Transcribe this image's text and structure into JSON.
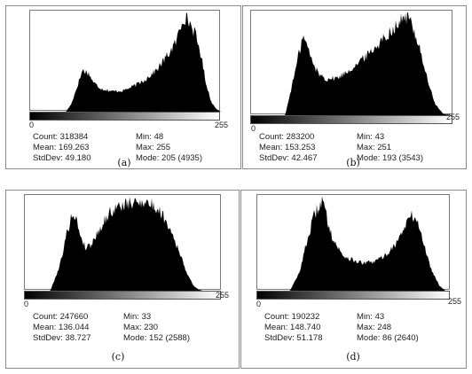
{
  "panels": [
    {
      "caption": "(a)",
      "axis": {
        "min_label": "0",
        "max_label": "255"
      },
      "stats": {
        "count": "Count: 318384",
        "mean": "Mean: 169.263",
        "stddev": "StdDev: 49.180",
        "min": "Min: 48",
        "max": "Max: 255",
        "mode": "Mode: 205 (4935)"
      }
    },
    {
      "caption": "(b)",
      "axis": {
        "min_label": "0",
        "max_label": "255"
      },
      "stats": {
        "count": "Count: 283200",
        "mean": "Mean: 153.253",
        "stddev": "StdDev: 42.467",
        "min": "Min: 43",
        "max": "Max: 251",
        "mode": "Mode: 193 (3543)"
      }
    },
    {
      "caption": "(c)",
      "axis": {
        "min_label": "0",
        "max_label": "255"
      },
      "stats": {
        "count": "Count: 247660",
        "mean": "Mean: 136.044",
        "stddev": "StdDev: 38.727",
        "min": "Min: 33",
        "max": "Max: 230",
        "mode": "Mode: 152 (2588)"
      }
    },
    {
      "caption": "(d)",
      "axis": {
        "min_label": "0",
        "max_label": "255"
      },
      "stats": {
        "count": "Count: 190232",
        "mean": "Mean: 148.740",
        "stddev": "StdDev: 51.178",
        "min": "Min: 43",
        "max": "Max: 248",
        "mode": "Mode: 86 (2640)"
      }
    }
  ],
  "chart_data": [
    {
      "type": "area",
      "xlim": [
        0,
        255
      ],
      "x": [
        48,
        55,
        62,
        70,
        78,
        85,
        95,
        110,
        125,
        140,
        155,
        170,
        185,
        195,
        200,
        205,
        212,
        220,
        228,
        235,
        242,
        250,
        255
      ],
      "values": [
        0,
        400,
        1200,
        2150,
        2000,
        1500,
        1200,
        1050,
        1100,
        1350,
        1700,
        2200,
        3000,
        3600,
        4300,
        4935,
        4700,
        4100,
        3000,
        1500,
        500,
        100,
        0
      ],
      "fill_color": "#000000"
    },
    {
      "type": "area",
      "xlim": [
        0,
        255
      ],
      "x": [
        43,
        55,
        65,
        72,
        78,
        85,
        95,
        110,
        125,
        140,
        155,
        170,
        180,
        188,
        193,
        200,
        212,
        222,
        232,
        242,
        251
      ],
      "values": [
        0,
        1500,
        2850,
        2400,
        1850,
        1500,
        1300,
        1350,
        1650,
        2000,
        2400,
        2850,
        3150,
        3350,
        3543,
        3450,
        2500,
        1300,
        400,
        50,
        0
      ],
      "fill_color": "#000000"
    },
    {
      "type": "area",
      "xlim": [
        0,
        255
      ],
      "x": [
        33,
        45,
        55,
        62,
        67,
        72,
        78,
        85,
        95,
        110,
        125,
        140,
        152,
        165,
        178,
        190,
        200,
        210,
        218,
        225,
        230
      ],
      "values": [
        0,
        700,
        1700,
        2250,
        2000,
        1600,
        1250,
        1300,
        1700,
        2250,
        2450,
        2500,
        2588,
        2450,
        2200,
        1700,
        1100,
        500,
        150,
        30,
        0
      ],
      "fill_color": "#000000"
    },
    {
      "type": "area",
      "xlim": [
        0,
        255
      ],
      "x": [
        43,
        55,
        65,
        75,
        82,
        86,
        92,
        100,
        112,
        125,
        140,
        155,
        170,
        185,
        195,
        202,
        210,
        218,
        228,
        240,
        248
      ],
      "values": [
        0,
        500,
        1400,
        2200,
        2500,
        2640,
        2100,
        1500,
        1050,
        900,
        800,
        850,
        1050,
        1450,
        1900,
        2200,
        2100,
        1500,
        700,
        150,
        0
      ],
      "fill_color": "#000000"
    }
  ]
}
